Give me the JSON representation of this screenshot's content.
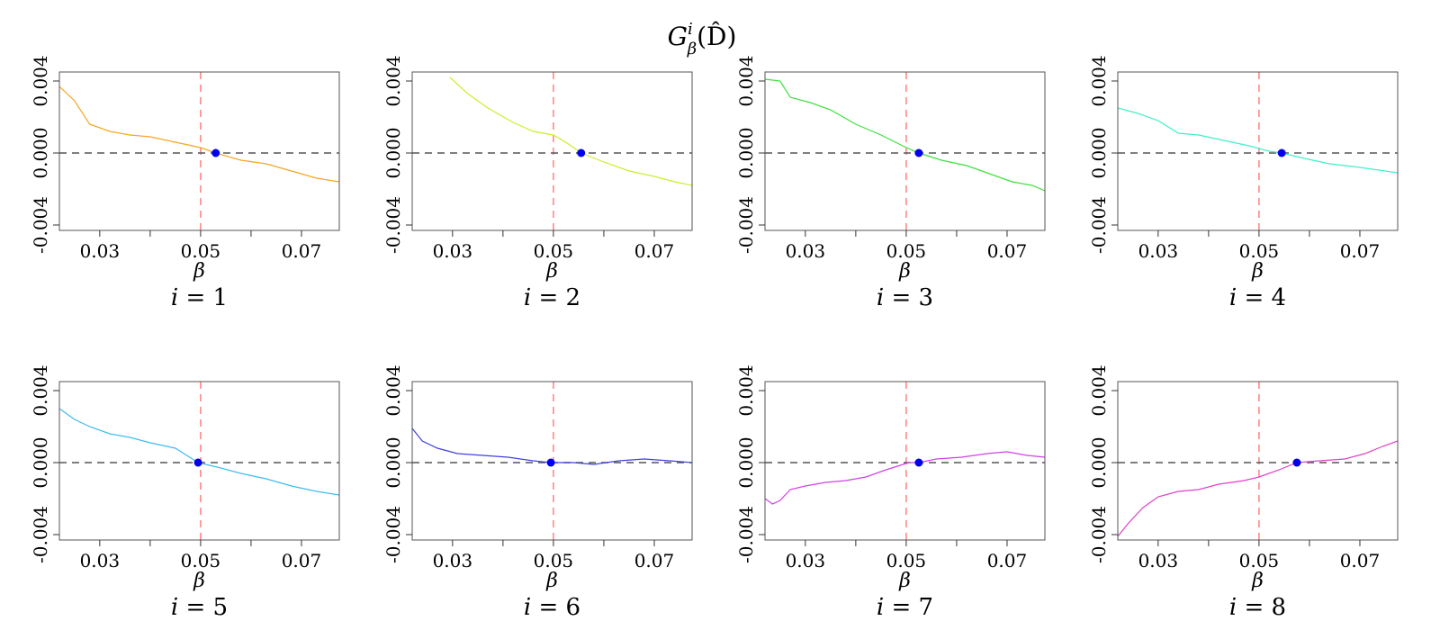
{
  "title": {
    "G": "G",
    "sup": "i",
    "sub": "β",
    "arg": "(D̂)"
  },
  "chart_data": {
    "type": "line",
    "layout": "grid 2x4",
    "xlabel": "β",
    "xlim": [
      0.022,
      0.0775
    ],
    "ylim": [
      -0.0043,
      0.0045
    ],
    "x_ticks": [
      0.03,
      0.05,
      0.07
    ],
    "x_tick_labels": [
      "0.03",
      "0.05",
      "0.07"
    ],
    "x_minor_ticks": [
      0.04,
      0.06
    ],
    "y_ticks": [
      -0.004,
      0.0,
      0.004
    ],
    "y_tick_labels": [
      "-0.004",
      "0.000",
      "0.004"
    ],
    "reference_lines": {
      "vertical_x": 0.05,
      "vertical_color": "#ff8080",
      "horizontal_y": 0.0,
      "horizontal_color": "#555555"
    },
    "root_marker_color": "#0000ee",
    "panels": [
      {
        "label_var": "i",
        "label_eq": "= 1",
        "color": "#f5a623",
        "points": [
          [
            0.022,
            0.0037
          ],
          [
            0.025,
            0.0029
          ],
          [
            0.028,
            0.0016
          ],
          [
            0.032,
            0.0012
          ],
          [
            0.036,
            0.001
          ],
          [
            0.04,
            0.0009
          ],
          [
            0.045,
            0.0006
          ],
          [
            0.05,
            0.0003
          ],
          [
            0.053,
            0.0
          ],
          [
            0.058,
            -0.0004
          ],
          [
            0.063,
            -0.0006
          ],
          [
            0.068,
            -0.001
          ],
          [
            0.073,
            -0.0014
          ],
          [
            0.0775,
            -0.0016
          ]
        ],
        "root": 0.053
      },
      {
        "label_var": "i",
        "label_eq": "= 2",
        "color": "#c8f026",
        "points": [
          [
            0.0295,
            0.0042
          ],
          [
            0.033,
            0.0033
          ],
          [
            0.037,
            0.0025
          ],
          [
            0.042,
            0.0017
          ],
          [
            0.046,
            0.0012
          ],
          [
            0.05,
            0.001
          ],
          [
            0.053,
            0.0005
          ],
          [
            0.0555,
            0.0
          ],
          [
            0.06,
            -0.0005
          ],
          [
            0.065,
            -0.001
          ],
          [
            0.07,
            -0.0013
          ],
          [
            0.074,
            -0.0016
          ],
          [
            0.0775,
            -0.0018
          ]
        ],
        "root": 0.0555
      },
      {
        "label_var": "i",
        "label_eq": "= 3",
        "color": "#3ee03e",
        "points": [
          [
            0.022,
            0.0041
          ],
          [
            0.025,
            0.004
          ],
          [
            0.027,
            0.0031
          ],
          [
            0.031,
            0.0028
          ],
          [
            0.035,
            0.0024
          ],
          [
            0.04,
            0.0016
          ],
          [
            0.045,
            0.001
          ],
          [
            0.05,
            0.0003
          ],
          [
            0.0525,
            0.0
          ],
          [
            0.057,
            -0.0004
          ],
          [
            0.062,
            -0.0007
          ],
          [
            0.067,
            -0.0012
          ],
          [
            0.071,
            -0.0016
          ],
          [
            0.075,
            -0.0018
          ],
          [
            0.0775,
            -0.0021
          ]
        ],
        "root": 0.0525
      },
      {
        "label_var": "i",
        "label_eq": "= 4",
        "color": "#3ff0c8",
        "points": [
          [
            0.022,
            0.0025
          ],
          [
            0.026,
            0.0022
          ],
          [
            0.03,
            0.0018
          ],
          [
            0.034,
            0.0011
          ],
          [
            0.038,
            0.001
          ],
          [
            0.043,
            0.0007
          ],
          [
            0.048,
            0.0004
          ],
          [
            0.052,
            0.0001
          ],
          [
            0.0545,
            0.0
          ],
          [
            0.059,
            -0.0003
          ],
          [
            0.064,
            -0.0006
          ],
          [
            0.07,
            -0.0008
          ],
          [
            0.0775,
            -0.0011
          ]
        ],
        "root": 0.0545
      },
      {
        "label_var": "i",
        "label_eq": "= 5",
        "color": "#3cbcf0",
        "points": [
          [
            0.022,
            0.003
          ],
          [
            0.025,
            0.0024
          ],
          [
            0.028,
            0.002
          ],
          [
            0.032,
            0.0016
          ],
          [
            0.036,
            0.0014
          ],
          [
            0.04,
            0.0011
          ],
          [
            0.045,
            0.0008
          ],
          [
            0.0495,
            0.0
          ],
          [
            0.054,
            -0.0003
          ],
          [
            0.058,
            -0.0006
          ],
          [
            0.063,
            -0.0009
          ],
          [
            0.068,
            -0.0013
          ],
          [
            0.073,
            -0.0016
          ],
          [
            0.0775,
            -0.0018
          ]
        ],
        "root": 0.0495
      },
      {
        "label_var": "i",
        "label_eq": "= 6",
        "color": "#4040e0",
        "points": [
          [
            0.022,
            0.0019
          ],
          [
            0.024,
            0.0012
          ],
          [
            0.027,
            0.0008
          ],
          [
            0.031,
            0.0005
          ],
          [
            0.036,
            0.0004
          ],
          [
            0.041,
            0.0003
          ],
          [
            0.046,
            0.0001
          ],
          [
            0.0495,
            0.0
          ],
          [
            0.054,
            0.0
          ],
          [
            0.058,
            -0.0001
          ],
          [
            0.063,
            0.0001
          ],
          [
            0.068,
            0.0002
          ],
          [
            0.073,
            0.0001
          ],
          [
            0.0775,
            0.0
          ]
        ],
        "root": 0.0495
      },
      {
        "label_var": "i",
        "label_eq": "= 7",
        "color": "#d040e8",
        "points": [
          [
            0.022,
            -0.002
          ],
          [
            0.0235,
            -0.0023
          ],
          [
            0.025,
            -0.0021
          ],
          [
            0.027,
            -0.0015
          ],
          [
            0.03,
            -0.0013
          ],
          [
            0.034,
            -0.0011
          ],
          [
            0.038,
            -0.001
          ],
          [
            0.042,
            -0.0008
          ],
          [
            0.046,
            -0.0004
          ],
          [
            0.0505,
            0.0
          ],
          [
            0.0525,
            0.0
          ],
          [
            0.056,
            0.0002
          ],
          [
            0.061,
            0.0003
          ],
          [
            0.066,
            0.0005
          ],
          [
            0.07,
            0.0006
          ],
          [
            0.074,
            0.0004
          ],
          [
            0.0775,
            0.0003
          ]
        ],
        "root": 0.0525
      },
      {
        "label_var": "i",
        "label_eq": "= 8",
        "color": "#e040c8",
        "points": [
          [
            0.022,
            -0.0041
          ],
          [
            0.024,
            -0.0034
          ],
          [
            0.027,
            -0.0025
          ],
          [
            0.03,
            -0.0019
          ],
          [
            0.034,
            -0.0016
          ],
          [
            0.038,
            -0.0015
          ],
          [
            0.042,
            -0.0012
          ],
          [
            0.047,
            -0.001
          ],
          [
            0.05,
            -0.0008
          ],
          [
            0.054,
            -0.0004
          ],
          [
            0.0575,
            0.0
          ],
          [
            0.062,
            0.0001
          ],
          [
            0.067,
            0.0002
          ],
          [
            0.071,
            0.0005
          ],
          [
            0.0745,
            0.0009
          ],
          [
            0.0775,
            0.0012
          ]
        ],
        "root": 0.0575
      }
    ]
  }
}
